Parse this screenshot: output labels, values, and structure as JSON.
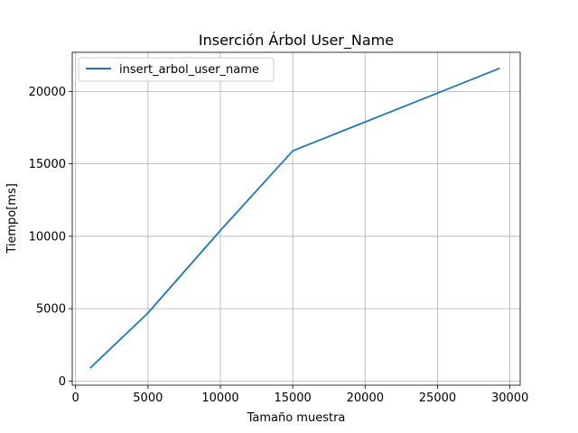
{
  "chart_data": {
    "type": "line",
    "title": "Inserción Árbol User_Name",
    "xlabel": "Tamaño muestra",
    "ylabel": "Tiempo[ms]",
    "xlim": [
      -230,
      30710
    ],
    "ylim": [
      -280,
      22700
    ],
    "xticks": [
      0,
      5000,
      10000,
      15000,
      20000,
      25000,
      30000
    ],
    "yticks": [
      0,
      5000,
      10000,
      15000,
      20000
    ],
    "grid": true,
    "legend_position": "top-left",
    "series": [
      {
        "name": "insert_arbol_user_name",
        "color": "#1f77b4",
        "x": [
          1000,
          5000,
          10000,
          15000,
          29300
        ],
        "y": [
          900,
          4700,
          10400,
          15900,
          21600
        ]
      }
    ]
  }
}
